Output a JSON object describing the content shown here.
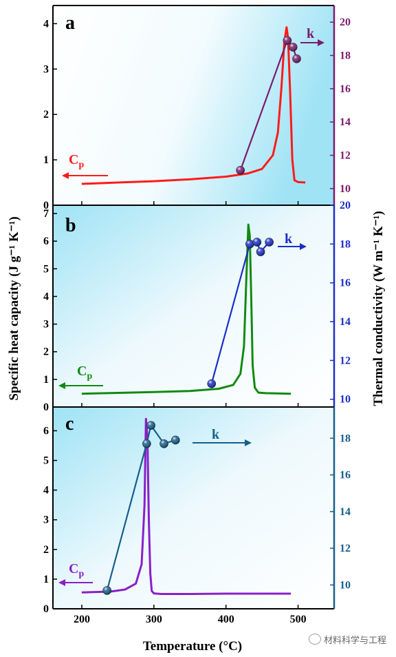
{
  "figure": {
    "xlabel": "Temperature (°C)",
    "ylabel_left": "Specific heat capacity (J g⁻¹ K⁻¹)",
    "ylabel_right": "Thermal conductivity (W m⁻¹ K⁻¹)",
    "watermark": "材料科学与工程"
  },
  "chart_data": [
    {
      "type": "line",
      "panel_label": "a",
      "xlim": [
        160,
        550
      ],
      "xticks": [
        200,
        300,
        400,
        500
      ],
      "ylim_left": [
        0,
        4.4
      ],
      "yticks_left": [
        0,
        1,
        2,
        3,
        4
      ],
      "ylim_right": [
        9.0,
        21.0
      ],
      "yticks_right": [
        10,
        12,
        14,
        16,
        18,
        20
      ],
      "right_axis_color": "#7b1a6e",
      "background_glow": "right",
      "series": [
        {
          "name": "Cp",
          "axis": "left",
          "color": "#ff1a1a",
          "x": [
            200,
            250,
            300,
            350,
            400,
            430,
            450,
            465,
            472,
            477,
            481,
            484,
            486,
            489,
            492,
            495,
            500,
            510
          ],
          "y": [
            0.47,
            0.5,
            0.53,
            0.57,
            0.63,
            0.7,
            0.8,
            1.1,
            1.6,
            2.6,
            3.6,
            3.92,
            3.7,
            2.5,
            1.0,
            0.55,
            0.51,
            0.5
          ]
        },
        {
          "name": "k",
          "axis": "right",
          "color": "#7b1a6e",
          "marker": "sphere",
          "x": [
            420,
            485,
            493,
            498
          ],
          "y": [
            11.1,
            18.9,
            18.5,
            17.8
          ]
        }
      ],
      "annotations": [
        {
          "text": "C",
          "sub": "p",
          "color": "#ff1a1a",
          "arrow": "left"
        },
        {
          "text": "k",
          "color": "#7b1a6e",
          "arrow": "right"
        }
      ]
    },
    {
      "type": "line",
      "panel_label": "b",
      "xlim": [
        160,
        550
      ],
      "xticks": [
        200,
        300,
        400,
        500
      ],
      "ylim_left": [
        0,
        7.3
      ],
      "yticks_left": [
        0,
        1,
        2,
        3,
        4,
        5,
        6,
        7
      ],
      "ylim_right": [
        9.6,
        20.0
      ],
      "yticks_right": [
        10,
        12,
        14,
        16,
        18,
        20
      ],
      "right_axis_color": "#1a2ec8",
      "background_glow": "left",
      "series": [
        {
          "name": "Cp",
          "axis": "left",
          "color": "#118a11",
          "x": [
            200,
            250,
            300,
            350,
            390,
            410,
            420,
            425,
            428,
            431,
            433,
            435,
            437,
            440,
            445,
            455,
            490
          ],
          "y": [
            0.48,
            0.51,
            0.54,
            0.58,
            0.66,
            0.8,
            1.2,
            2.2,
            4.5,
            6.6,
            6.2,
            4.0,
            1.5,
            0.7,
            0.52,
            0.5,
            0.48
          ]
        },
        {
          "name": "k",
          "axis": "right",
          "color": "#1a2ec8",
          "marker": "sphere",
          "x": [
            380,
            433,
            443,
            448,
            460
          ],
          "y": [
            10.8,
            18.0,
            18.1,
            17.6,
            18.1
          ]
        }
      ],
      "annotations": [
        {
          "text": "C",
          "sub": "p",
          "color": "#118a11",
          "arrow": "left"
        },
        {
          "text": "k",
          "color": "#1a2ec8",
          "arrow": "right"
        }
      ]
    },
    {
      "type": "line",
      "panel_label": "c",
      "xlim": [
        160,
        550
      ],
      "xticks": [
        200,
        300,
        400,
        500
      ],
      "ylim_left": [
        0,
        6.8
      ],
      "yticks_left": [
        0,
        1,
        2,
        3,
        4,
        5,
        6
      ],
      "ylim_right": [
        8.7,
        19.7
      ],
      "yticks_right": [
        10,
        12,
        14,
        16,
        18
      ],
      "right_axis_color": "#155e8c",
      "background_glow": "left",
      "series": [
        {
          "name": "Cp",
          "axis": "left",
          "color": "#8a1fc8",
          "x": [
            200,
            240,
            260,
            275,
            283,
            287,
            289,
            291,
            293,
            295,
            297,
            300,
            310,
            350,
            400,
            490
          ],
          "y": [
            0.55,
            0.58,
            0.65,
            0.85,
            1.5,
            3.5,
            6.4,
            5.8,
            3.0,
            1.2,
            0.6,
            0.52,
            0.5,
            0.5,
            0.51,
            0.51
          ]
        },
        {
          "name": "k",
          "axis": "right",
          "color": "#155e8c",
          "marker": "sphere",
          "x": [
            235,
            290,
            296,
            314,
            330
          ],
          "y": [
            9.7,
            17.7,
            18.7,
            17.7,
            17.9
          ]
        }
      ],
      "annotations": [
        {
          "text": "C",
          "sub": "p",
          "color": "#8a1fc8",
          "arrow": "left"
        },
        {
          "text": "k",
          "color": "#155e8c",
          "arrow": "right"
        }
      ]
    }
  ]
}
